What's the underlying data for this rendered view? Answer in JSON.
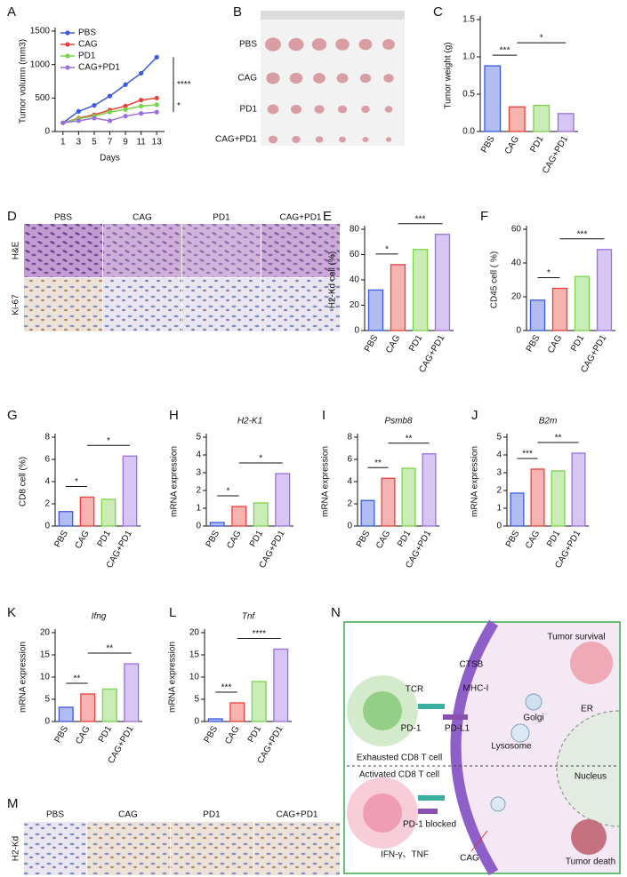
{
  "chart_data": [
    {
      "type": "line",
      "label": "A",
      "xlabel": "Days",
      "ylabel": "Tumor volumn (mm3)",
      "x": [
        1,
        3,
        5,
        7,
        9,
        11,
        13
      ],
      "xlim": [
        0,
        14
      ],
      "xticks": [
        1,
        3,
        5,
        7,
        9,
        11,
        13
      ],
      "ylim": [
        0,
        1500
      ],
      "yticks": [
        0,
        500,
        1000,
        1500
      ],
      "series": [
        {
          "name": "PBS",
          "color": "#3b5bdb",
          "values": [
            130,
            300,
            390,
            530,
            700,
            870,
            1110
          ]
        },
        {
          "name": "CAG",
          "color": "#e8413a",
          "values": [
            130,
            200,
            250,
            320,
            380,
            470,
            500
          ]
        },
        {
          "name": "PD1",
          "color": "#7bd34a",
          "values": [
            130,
            190,
            230,
            290,
            330,
            380,
            400
          ]
        },
        {
          "name": "CAG+PD1",
          "color": "#9b6fe0",
          "values": [
            130,
            160,
            200,
            160,
            230,
            270,
            290
          ]
        }
      ],
      "annotations": [
        {
          "text": "****",
          "color": "#e8413a"
        },
        {
          "text": "*",
          "color": "#111111"
        }
      ]
    },
    {
      "type": "bar",
      "label": "C",
      "ylabel": "Tumor weight (g)",
      "categories": [
        "PBS",
        "CAG",
        "PD1",
        "CAG+PD1"
      ],
      "values": [
        0.88,
        0.33,
        0.35,
        0.24
      ],
      "colors": [
        "#3b5bdb",
        "#e8413a",
        "#7bd34a",
        "#9b6fe0"
      ],
      "ylim": [
        0,
        1.5
      ],
      "yticks": [
        {
          "value": 0,
          "label": "0.0"
        },
        {
          "value": 0.5,
          "label": "0.5"
        },
        {
          "value": 1,
          "label": "1.0"
        },
        {
          "value": 1.5,
          "label": "1.5"
        }
      ],
      "annotations": [
        "***",
        "*"
      ]
    },
    {
      "type": "bar",
      "label": "E",
      "ylabel": "H2-Kd cell (%)",
      "categories": [
        "PBS",
        "CAG",
        "PD1",
        "CAG+PD1"
      ],
      "values": [
        32,
        52,
        64,
        76
      ],
      "colors": [
        "#3b5bdb",
        "#e8413a",
        "#7bd34a",
        "#9b6fe0"
      ],
      "ylim": [
        0,
        80
      ],
      "yticks": [
        0,
        20,
        40,
        60,
        80
      ],
      "annotations": [
        "*",
        "***"
      ]
    },
    {
      "type": "bar",
      "label": "F",
      "ylabel": "CD45 cell ( %)",
      "categories": [
        "PBS",
        "CAG",
        "PD1",
        "CAG+PD1"
      ],
      "values": [
        18,
        25,
        32,
        48
      ],
      "colors": [
        "#3b5bdb",
        "#e8413a",
        "#7bd34a",
        "#9b6fe0"
      ],
      "ylim": [
        0,
        60
      ],
      "yticks": [
        0,
        20,
        40,
        60
      ],
      "annotations": [
        "*",
        "***"
      ]
    },
    {
      "type": "bar",
      "label": "G",
      "ylabel": "CD8 cell (%)",
      "categories": [
        "PBS",
        "CAG",
        "PD1",
        "CAG+PD1"
      ],
      "values": [
        1.3,
        2.6,
        2.4,
        6.3
      ],
      "colors": [
        "#3b5bdb",
        "#e8413a",
        "#7bd34a",
        "#9b6fe0"
      ],
      "ylim": [
        0,
        8
      ],
      "yticks": [
        0,
        2,
        4,
        6,
        8
      ],
      "annotations": [
        "*",
        "*"
      ]
    },
    {
      "type": "bar",
      "label": "H",
      "title": "H2-K1",
      "ylabel": "mRNA expression",
      "categories": [
        "PBS",
        "CAG",
        "PD1",
        "CAG+PD1"
      ],
      "values": [
        0.2,
        1.1,
        1.3,
        2.95
      ],
      "colors": [
        "#3b5bdb",
        "#e8413a",
        "#7bd34a",
        "#9b6fe0"
      ],
      "ylim": [
        0,
        5
      ],
      "yticks": [
        0,
        1,
        2,
        3,
        4,
        5
      ],
      "annotations": [
        "*",
        "*"
      ]
    },
    {
      "type": "bar",
      "label": "I",
      "title": "Psmb8",
      "ylabel": "mRNA expression",
      "categories": [
        "PBS",
        "CAG",
        "PD1",
        "CAG+PD1"
      ],
      "values": [
        2.3,
        4.3,
        5.2,
        6.5
      ],
      "colors": [
        "#3b5bdb",
        "#e8413a",
        "#7bd34a",
        "#9b6fe0"
      ],
      "ylim": [
        0,
        8
      ],
      "yticks": [
        0,
        2,
        4,
        6,
        8
      ],
      "annotations": [
        "**",
        "**"
      ]
    },
    {
      "type": "bar",
      "label": "J",
      "title": "B2m",
      "ylabel": "mRNA expression",
      "categories": [
        "PBS",
        "CAG",
        "PD1",
        "CAG+PD1"
      ],
      "values": [
        1.85,
        3.2,
        3.1,
        4.1
      ],
      "colors": [
        "#3b5bdb",
        "#e8413a",
        "#7bd34a",
        "#9b6fe0"
      ],
      "ylim": [
        0,
        5
      ],
      "yticks": [
        0,
        1,
        2,
        3,
        4,
        5
      ],
      "annotations": [
        "***",
        "**"
      ]
    },
    {
      "type": "bar",
      "label": "K",
      "title": "Ifng",
      "ylabel": "mRNA expression",
      "categories": [
        "PBS",
        "CAG",
        "PD1",
        "CAG+PD1"
      ],
      "values": [
        3.2,
        6.2,
        7.3,
        13
      ],
      "colors": [
        "#3b5bdb",
        "#e8413a",
        "#7bd34a",
        "#9b6fe0"
      ],
      "ylim": [
        0,
        20
      ],
      "yticks": [
        0,
        5,
        10,
        15,
        20
      ],
      "annotations": [
        "**",
        "**"
      ]
    },
    {
      "type": "bar",
      "label": "L",
      "title": "Tnf",
      "ylabel": "mRNA expression",
      "categories": [
        "PBS",
        "CAG",
        "PD1",
        "CAG+PD1"
      ],
      "values": [
        0.6,
        4.2,
        9,
        16.3
      ],
      "colors": [
        "#3b5bdb",
        "#e8413a",
        "#7bd34a",
        "#9b6fe0"
      ],
      "ylim": [
        0,
        20
      ],
      "yticks": [
        0,
        5,
        10,
        15,
        20
      ],
      "annotations": [
        "***",
        "****"
      ]
    }
  ],
  "photo": {
    "label": "B",
    "rows": [
      "PBS",
      "CAG",
      "PD1",
      "CAG+PD1"
    ]
  },
  "histology_d": {
    "label": "D",
    "columns": [
      "PBS",
      "CAG",
      "PD1",
      "CAG+PD1"
    ],
    "rows": [
      "H&E",
      "Ki-67"
    ]
  },
  "histology_m": {
    "label": "M",
    "columns": [
      "PBS",
      "CAG",
      "PD1",
      "CAG+PD1"
    ],
    "rows": [
      "H2-Kd"
    ]
  },
  "diagram": {
    "label": "N",
    "texts": [
      "Tumor survival",
      "CTSB",
      "MHC-I",
      "TCR",
      "Golgi",
      "ER",
      "PD-1",
      "PD-L1",
      "Lysosome",
      "Exhausted CD8 T cell",
      "Activated CD8 T cell",
      "Nucleus",
      "PD-1 blocked",
      "IFN-γ、TNF",
      "CAG",
      "Tumor death"
    ]
  }
}
